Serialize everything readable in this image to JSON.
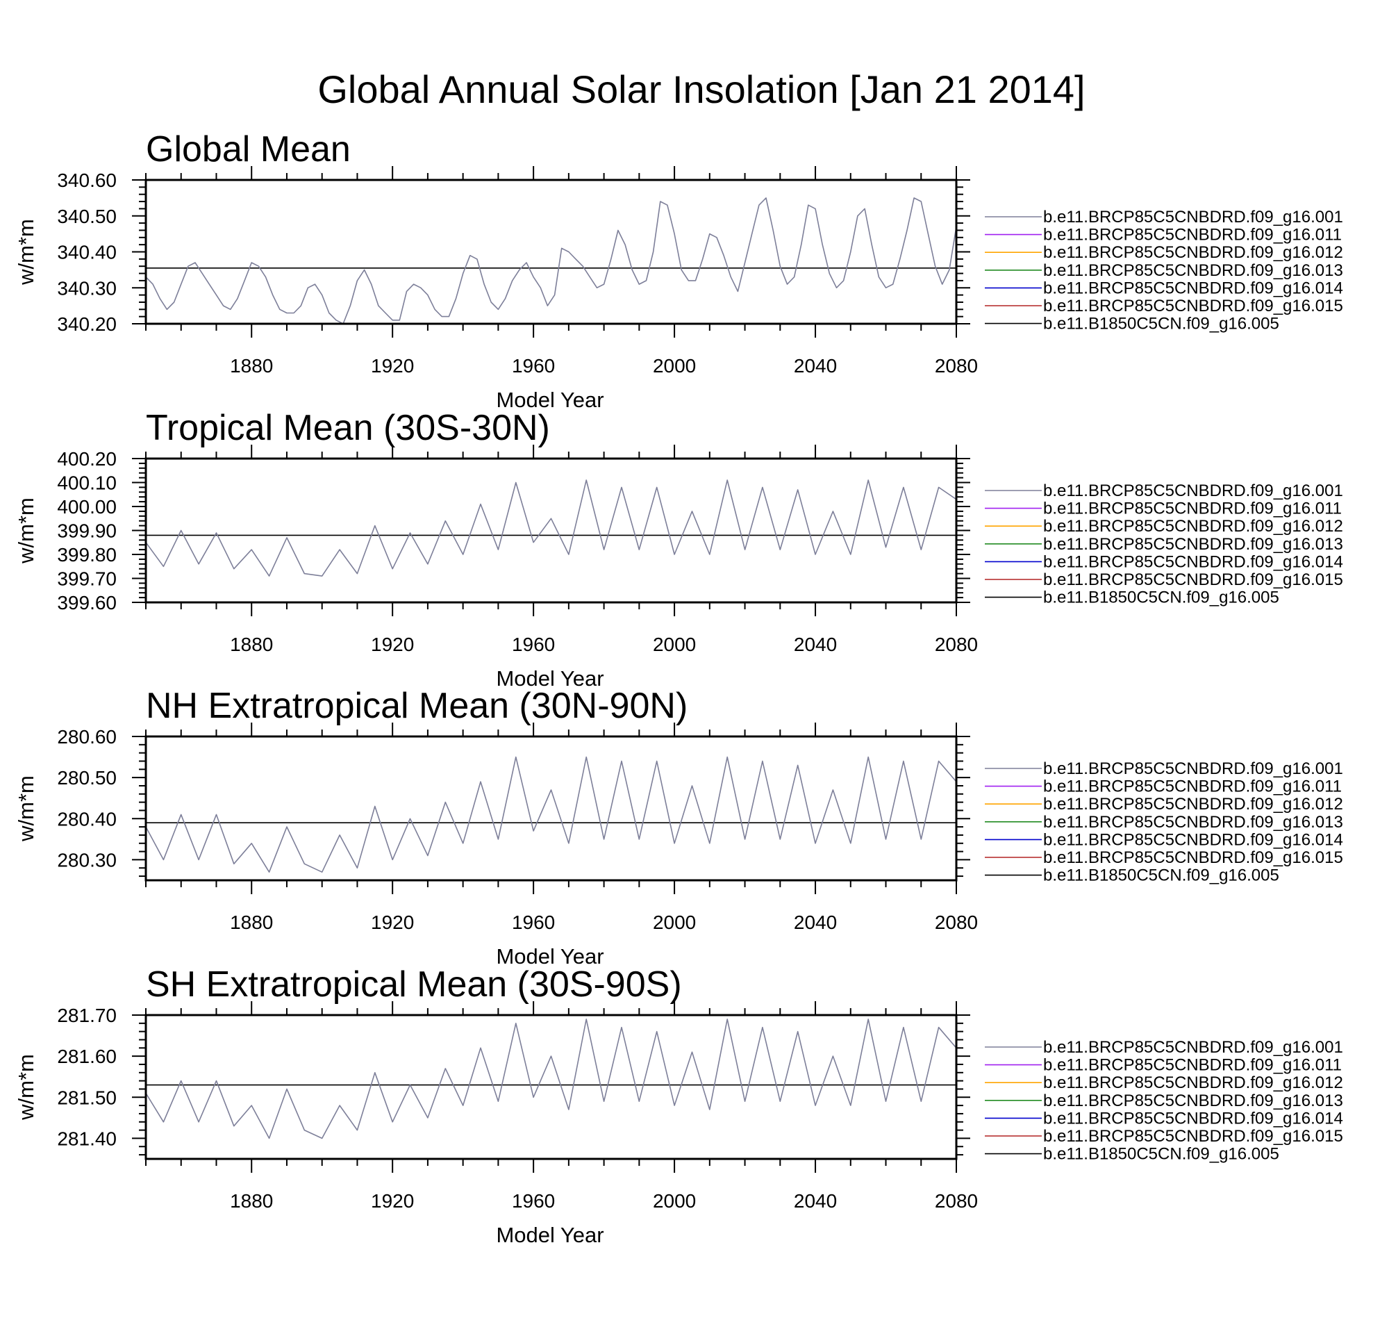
{
  "title": "Global Annual Solar Insolation [Jan 21 2014]",
  "colors": {
    "series_001": "#7d7f99",
    "series_011": "#a020f0",
    "series_012": "#ffa500",
    "series_013": "#228b22",
    "series_014": "#0000cd",
    "series_015": "#b22222",
    "series_005": "#000000"
  },
  "legend": [
    {
      "label": "b.e11.BRCP85C5CNBDRD.f09_g16.001",
      "color": "#7d7f99"
    },
    {
      "label": "b.e11.BRCP85C5CNBDRD.f09_g16.011",
      "color": "#a020f0"
    },
    {
      "label": "b.e11.BRCP85C5CNBDRD.f09_g16.012",
      "color": "#ffa500"
    },
    {
      "label": "b.e11.BRCP85C5CNBDRD.f09_g16.013",
      "color": "#228b22"
    },
    {
      "label": "b.e11.BRCP85C5CNBDRD.f09_g16.014",
      "color": "#0000cd"
    },
    {
      "label": "b.e11.BRCP85C5CNBDRD.f09_g16.015",
      "color": "#b22222"
    },
    {
      "label": "b.e11.B1850C5CN.f09_g16.005",
      "color": "#000000"
    }
  ],
  "chart_data": [
    {
      "type": "line",
      "title": "Global Mean",
      "xlabel": "Model Year",
      "ylabel": "w/m*m",
      "xlim": [
        1850,
        2080
      ],
      "ylim": [
        340.2,
        340.6
      ],
      "xticks": [
        1880,
        1920,
        1960,
        2000,
        2040,
        2080
      ],
      "yticks": [
        "340.20",
        "340.30",
        "340.40",
        "340.50",
        "340.60"
      ],
      "baseline_B1850C5CN_005": 340.355,
      "series": [
        {
          "name": "b.e11.BRCP85C5CNBDRD.f09_g16.001",
          "x": [
            1850,
            1852,
            1854,
            1856,
            1858,
            1860,
            1862,
            1864,
            1866,
            1868,
            1870,
            1872,
            1874,
            1876,
            1878,
            1880,
            1882,
            1884,
            1886,
            1888,
            1890,
            1892,
            1894,
            1896,
            1898,
            1900,
            1902,
            1904,
            1906,
            1908,
            1910,
            1912,
            1914,
            1916,
            1918,
            1920,
            1922,
            1924,
            1926,
            1928,
            1930,
            1932,
            1934,
            1936,
            1938,
            1940,
            1942,
            1944,
            1946,
            1948,
            1950,
            1952,
            1954,
            1956,
            1958,
            1960,
            1962,
            1964,
            1966,
            1968,
            1970,
            1972,
            1974,
            1976,
            1978,
            1980,
            1982,
            1984,
            1986,
            1988,
            1990,
            1992,
            1994,
            1996,
            1998,
            2000,
            2002,
            2004,
            2006,
            2008,
            2010,
            2012,
            2014,
            2016,
            2018,
            2020,
            2022,
            2024,
            2026,
            2028,
            2030,
            2032,
            2034,
            2036,
            2038,
            2040,
            2042,
            2044,
            2046,
            2048,
            2050,
            2052,
            2054,
            2056,
            2058,
            2060,
            2062,
            2064,
            2066,
            2068,
            2070,
            2072,
            2074,
            2076,
            2078,
            2080
          ],
          "values": [
            340.33,
            340.31,
            340.27,
            340.24,
            340.26,
            340.31,
            340.36,
            340.37,
            340.34,
            340.31,
            340.28,
            340.25,
            340.24,
            340.27,
            340.32,
            340.37,
            340.36,
            340.33,
            340.28,
            340.24,
            340.23,
            340.23,
            340.25,
            340.3,
            340.31,
            340.28,
            340.23,
            340.21,
            340.2,
            340.25,
            340.32,
            340.35,
            340.31,
            340.25,
            340.23,
            340.21,
            340.21,
            340.29,
            340.31,
            340.3,
            340.28,
            340.24,
            340.22,
            340.22,
            340.27,
            340.34,
            340.39,
            340.38,
            340.31,
            340.26,
            340.24,
            340.27,
            340.32,
            340.35,
            340.37,
            340.33,
            340.3,
            340.25,
            340.28,
            340.41,
            340.4,
            340.38,
            340.36,
            340.33,
            340.3,
            340.31,
            340.38,
            340.46,
            340.42,
            340.35,
            340.31,
            340.32,
            340.4,
            340.54,
            340.53,
            340.45,
            340.35,
            340.32,
            340.32,
            340.38,
            340.45,
            340.44,
            340.39,
            340.33,
            340.29,
            340.37,
            340.45,
            340.53,
            340.55,
            340.46,
            340.36,
            340.31,
            340.33,
            340.42,
            340.53,
            340.52,
            340.42,
            340.34,
            340.3,
            340.32,
            340.4,
            340.5,
            340.52,
            340.42,
            340.33,
            340.3,
            340.31,
            340.38,
            340.46,
            340.55,
            340.54,
            340.45,
            340.36,
            340.31,
            340.35,
            340.47
          ]
        }
      ]
    },
    {
      "type": "line",
      "title": "Tropical Mean (30S-30N)",
      "xlabel": "Model Year",
      "ylabel": "w/m*m",
      "xlim": [
        1850,
        2080
      ],
      "ylim": [
        399.6,
        400.2
      ],
      "xticks": [
        1880,
        1920,
        1960,
        2000,
        2040,
        2080
      ],
      "yticks": [
        "399.60",
        "399.70",
        "399.80",
        "399.90",
        "400.00",
        "400.10",
        "400.20"
      ],
      "baseline_B1850C5CN_005": 399.88,
      "series": [
        {
          "name": "b.e11.BRCP85C5CNBDRD.f09_g16.001",
          "x": [
            1850,
            1855,
            1860,
            1865,
            1870,
            1875,
            1880,
            1885,
            1890,
            1895,
            1900,
            1905,
            1910,
            1915,
            1920,
            1925,
            1930,
            1935,
            1940,
            1945,
            1950,
            1955,
            1960,
            1965,
            1970,
            1975,
            1980,
            1985,
            1990,
            1995,
            2000,
            2005,
            2010,
            2015,
            2020,
            2025,
            2030,
            2035,
            2040,
            2045,
            2050,
            2055,
            2060,
            2065,
            2070,
            2075,
            2080
          ],
          "values": [
            399.85,
            399.75,
            399.9,
            399.76,
            399.89,
            399.74,
            399.82,
            399.71,
            399.87,
            399.72,
            399.71,
            399.82,
            399.72,
            399.92,
            399.74,
            399.89,
            399.76,
            399.94,
            399.8,
            400.01,
            399.82,
            400.1,
            399.85,
            399.95,
            399.8,
            400.11,
            399.82,
            400.08,
            399.82,
            400.08,
            399.8,
            399.98,
            399.8,
            400.11,
            399.82,
            400.08,
            399.82,
            400.07,
            399.8,
            399.98,
            399.8,
            400.11,
            399.83,
            400.08,
            399.82,
            400.08,
            400.03
          ]
        }
      ]
    },
    {
      "type": "line",
      "title": "NH Extratropical Mean (30N-90N)",
      "xlabel": "Model Year",
      "ylabel": "w/m*m",
      "xlim": [
        1850,
        2080
      ],
      "ylim": [
        280.25,
        280.6
      ],
      "xticks": [
        1880,
        1920,
        1960,
        2000,
        2040,
        2080
      ],
      "yticks": [
        "280.30",
        "280.40",
        "280.50",
        "280.60"
      ],
      "baseline_B1850C5CN_005": 280.39,
      "series": [
        {
          "name": "b.e11.BRCP85C5CNBDRD.f09_g16.001",
          "x": [
            1850,
            1855,
            1860,
            1865,
            1870,
            1875,
            1880,
            1885,
            1890,
            1895,
            1900,
            1905,
            1910,
            1915,
            1920,
            1925,
            1930,
            1935,
            1940,
            1945,
            1950,
            1955,
            1960,
            1965,
            1970,
            1975,
            1980,
            1985,
            1990,
            1995,
            2000,
            2005,
            2010,
            2015,
            2020,
            2025,
            2030,
            2035,
            2040,
            2045,
            2050,
            2055,
            2060,
            2065,
            2070,
            2075,
            2080
          ],
          "values": [
            280.38,
            280.3,
            280.41,
            280.3,
            280.41,
            280.29,
            280.34,
            280.27,
            280.38,
            280.29,
            280.27,
            280.36,
            280.28,
            280.43,
            280.3,
            280.4,
            280.31,
            280.44,
            280.34,
            280.49,
            280.35,
            280.55,
            280.37,
            280.47,
            280.34,
            280.55,
            280.35,
            280.54,
            280.35,
            280.54,
            280.34,
            280.48,
            280.34,
            280.55,
            280.35,
            280.54,
            280.35,
            280.53,
            280.34,
            280.47,
            280.34,
            280.55,
            280.35,
            280.54,
            280.35,
            280.54,
            280.49
          ]
        }
      ]
    },
    {
      "type": "line",
      "title": "SH Extratropical Mean (30S-90S)",
      "xlabel": "Model Year",
      "ylabel": "w/m*m",
      "xlim": [
        1850,
        2080
      ],
      "ylim": [
        281.35,
        281.7
      ],
      "xticks": [
        1880,
        1920,
        1960,
        2000,
        2040,
        2080
      ],
      "yticks": [
        "281.40",
        "281.50",
        "281.60",
        "281.70"
      ],
      "baseline_B1850C5CN_005": 281.53,
      "series": [
        {
          "name": "b.e11.BRCP85C5CNBDRD.f09_g16.001",
          "x": [
            1850,
            1855,
            1860,
            1865,
            1870,
            1875,
            1880,
            1885,
            1890,
            1895,
            1900,
            1905,
            1910,
            1915,
            1920,
            1925,
            1930,
            1935,
            1940,
            1945,
            1950,
            1955,
            1960,
            1965,
            1970,
            1975,
            1980,
            1985,
            1990,
            1995,
            2000,
            2005,
            2010,
            2015,
            2020,
            2025,
            2030,
            2035,
            2040,
            2045,
            2050,
            2055,
            2060,
            2065,
            2070,
            2075,
            2080
          ],
          "values": [
            281.51,
            281.44,
            281.54,
            281.44,
            281.54,
            281.43,
            281.48,
            281.4,
            281.52,
            281.42,
            281.4,
            281.48,
            281.42,
            281.56,
            281.44,
            281.53,
            281.45,
            281.57,
            281.48,
            281.62,
            281.49,
            281.68,
            281.5,
            281.6,
            281.47,
            281.69,
            281.49,
            281.67,
            281.49,
            281.66,
            281.48,
            281.61,
            281.47,
            281.69,
            281.49,
            281.67,
            281.49,
            281.66,
            281.48,
            281.6,
            281.48,
            281.69,
            281.49,
            281.67,
            281.49,
            281.67,
            281.62
          ]
        }
      ]
    }
  ]
}
